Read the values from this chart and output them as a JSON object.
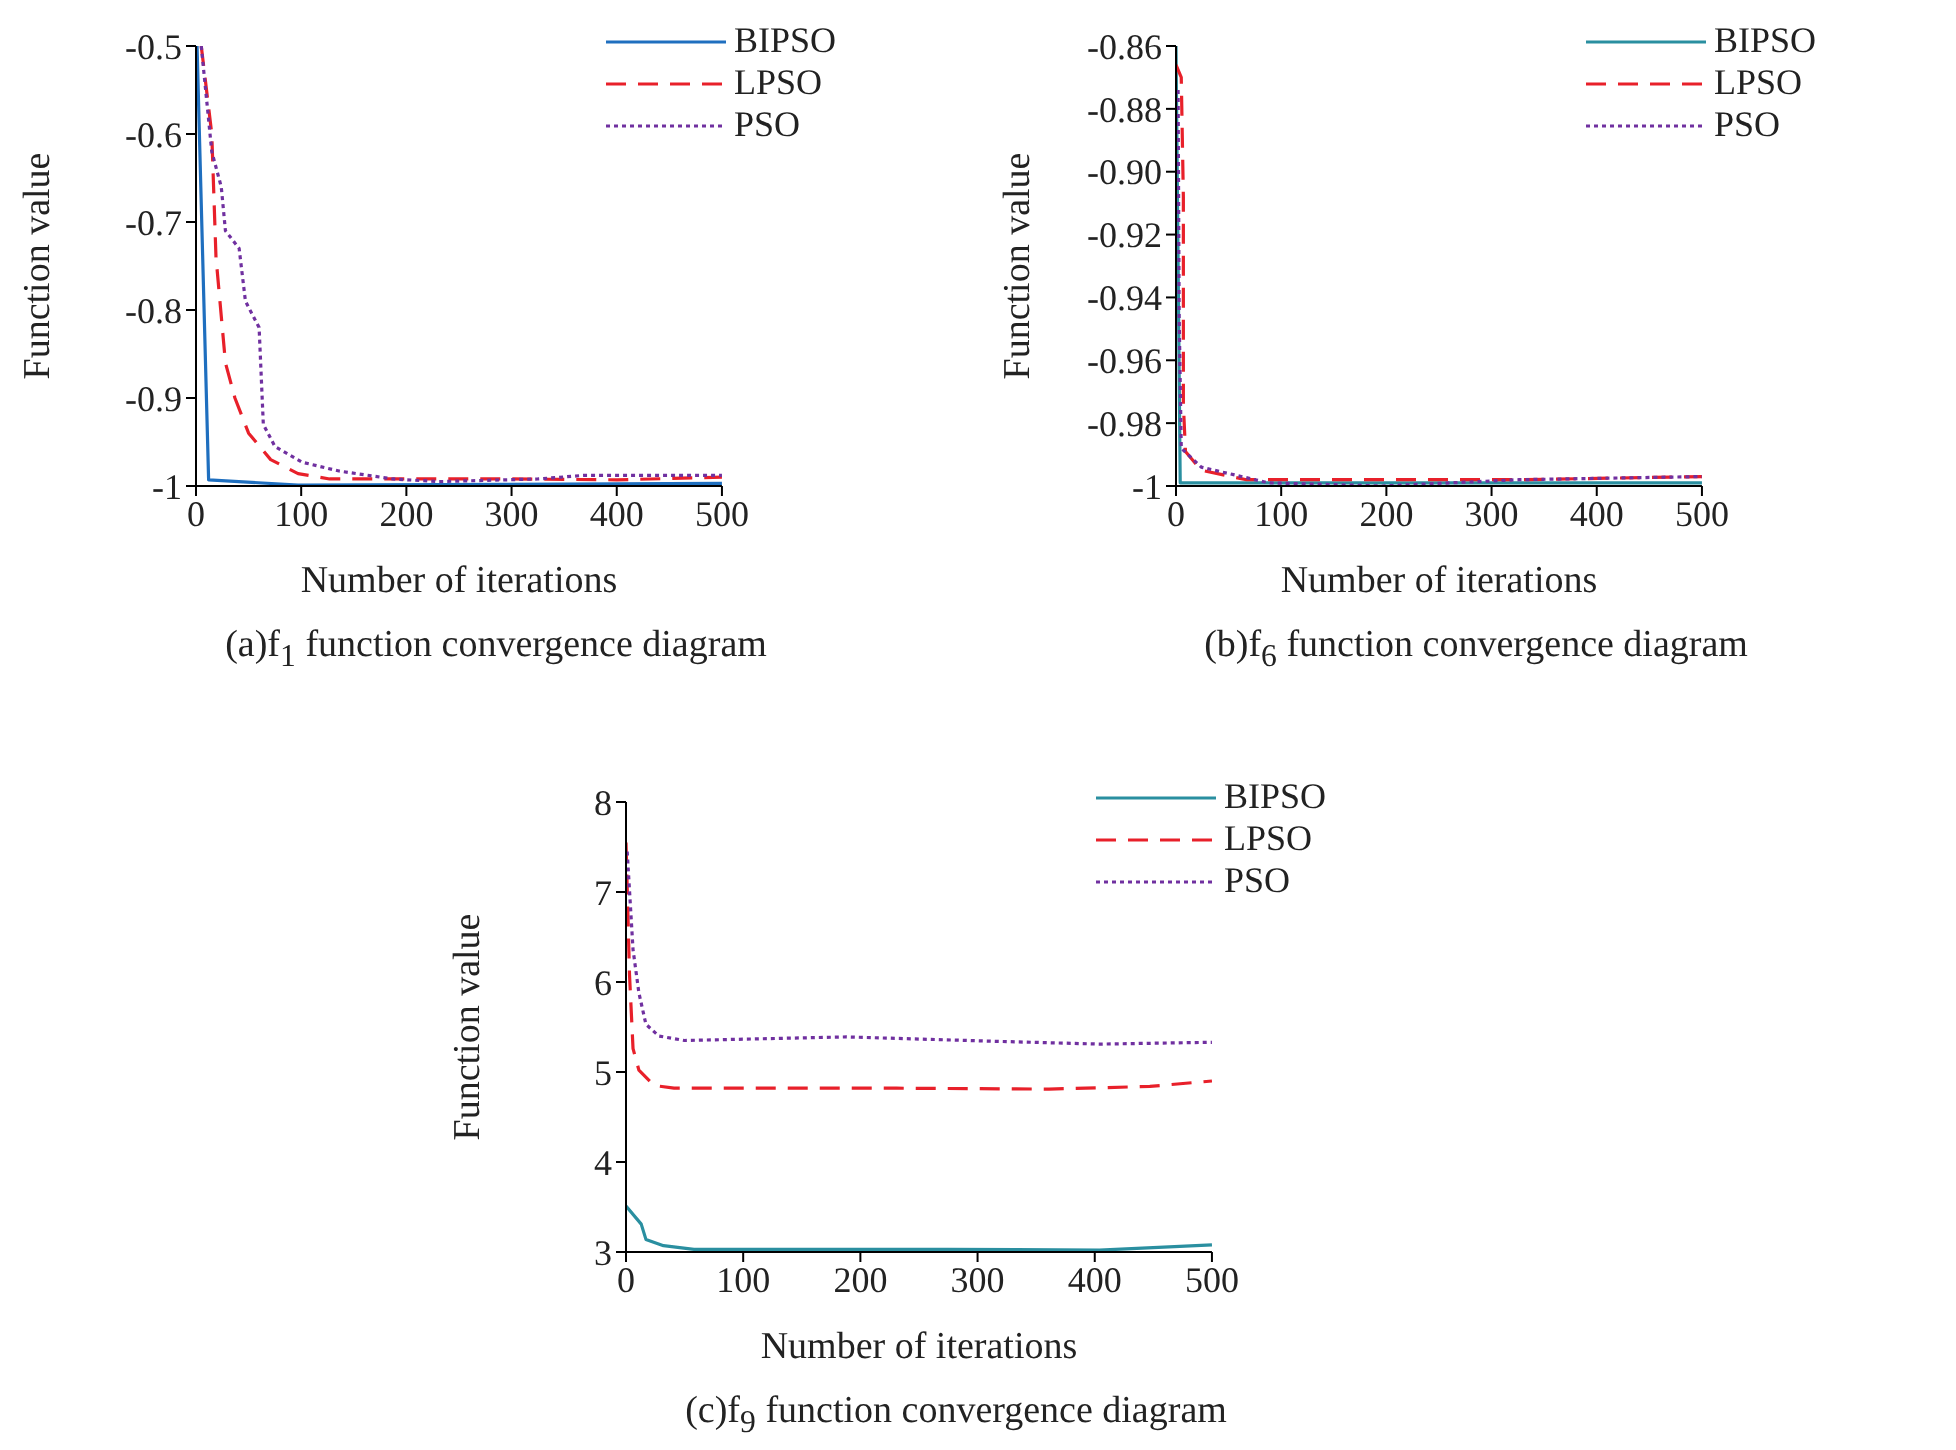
{
  "chart_data": [
    {
      "type": "line",
      "title": "(a)f$_{1}$ function convergence diagram",
      "xlabel": "Number of iterations",
      "ylabel": "Function value",
      "xlim": [
        0,
        500
      ],
      "xticks": [
        0,
        100,
        200,
        300,
        400,
        500
      ],
      "ylim": [
        -1,
        -0.5
      ],
      "yticks": [
        -1,
        -0.9,
        -0.8,
        -0.7,
        -0.6,
        -0.5
      ],
      "grid": false,
      "legend": "top right",
      "marker": "none",
      "series": [
        {
          "name": "BIPSO",
          "color": "#1f6fbf",
          "line_style": "solid",
          "x": [
            0,
            1,
            12,
            97,
            500
          ],
          "values": [
            -0.5,
            -0.5,
            -0.993,
            -0.999,
            -0.997
          ]
        },
        {
          "name": "LPSO",
          "color": "#e8202a",
          "line_style": "dashed",
          "x": [
            5,
            15,
            19,
            28,
            37,
            50,
            71,
            97,
            127,
            196,
            300,
            400,
            500
          ],
          "values": [
            -0.5,
            -0.6,
            -0.74,
            -0.86,
            -0.9,
            -0.94,
            -0.97,
            -0.986,
            -0.992,
            -0.992,
            -0.992,
            -0.993,
            -0.99
          ]
        },
        {
          "name": "PSO",
          "color": "#7030a0",
          "line_style": "dotted",
          "x": [
            5,
            15,
            24,
            28,
            41,
            47,
            60,
            64,
            75,
            101,
            136,
            187,
            231,
            325,
            368,
            500
          ],
          "values": [
            -0.5,
            -0.62,
            -0.66,
            -0.71,
            -0.73,
            -0.79,
            -0.82,
            -0.93,
            -0.955,
            -0.973,
            -0.983,
            -0.992,
            -0.995,
            -0.992,
            -0.988,
            -0.988
          ]
        }
      ]
    },
    {
      "type": "line",
      "title": "(b)f$_{6}$ function convergence diagram",
      "xlabel": "Number of iterations",
      "ylabel": "Function value",
      "xlim": [
        0,
        500
      ],
      "xticks": [
        0,
        100,
        200,
        300,
        400,
        500
      ],
      "ylim": [
        -1,
        -0.86
      ],
      "yticks": [
        -1,
        {
          "value": -0.98,
          "label": "-0.98"
        },
        {
          "value": -0.96,
          "label": "-0.96"
        },
        {
          "value": -0.94,
          "label": "-0.94"
        },
        {
          "value": -0.92,
          "label": "-0.92"
        },
        {
          "value": -0.9,
          "label": "-0.90"
        },
        {
          "value": -0.88,
          "label": "-0.88"
        },
        {
          "value": -0.86,
          "label": "-0.86"
        }
      ],
      "grid": false,
      "legend": "top right",
      "marker": "none",
      "series": [
        {
          "name": "BIPSO",
          "color": "#2a8fa0",
          "line_style": "solid",
          "x": [
            0,
            4,
            500
          ],
          "values": [
            -0.86,
            -0.999,
            -0.999
          ]
        },
        {
          "name": "LPSO",
          "color": "#e8202a",
          "line_style": "dashed",
          "x": [
            0,
            5,
            7,
            7,
            9,
            24,
            67,
            326,
            500
          ],
          "values": [
            -0.866,
            -0.87,
            -0.908,
            -0.974,
            -0.989,
            -0.995,
            -0.998,
            -0.998,
            -0.997
          ]
        },
        {
          "name": "PSO",
          "color": "#7030a0",
          "line_style": "dotted",
          "x": [
            2,
            3,
            5,
            24,
            88,
            196,
            326,
            500
          ],
          "values": [
            -0.874,
            -0.946,
            -0.988,
            -0.994,
            -0.999,
            -1.0,
            -0.998,
            -0.997
          ]
        }
      ]
    },
    {
      "type": "line",
      "title": "(c)f$_{9}$ function convergence diagram",
      "xlabel": "Number of iterations",
      "ylabel": "Function value",
      "xlim": [
        0,
        500
      ],
      "xticks": [
        0,
        100,
        200,
        300,
        400,
        500
      ],
      "ylim": [
        3,
        8
      ],
      "yticks": [
        3,
        4,
        5,
        6,
        7,
        8
      ],
      "grid": false,
      "legend": "top right",
      "marker": "none",
      "series": [
        {
          "name": "BIPSO",
          "color": "#2a8fa0",
          "line_style": "solid",
          "x": [
            0,
            13,
            17,
            32,
            58,
            274,
            404,
            500
          ],
          "values": [
            3.51,
            3.31,
            3.14,
            3.07,
            3.03,
            3.03,
            3.02,
            3.08
          ]
        },
        {
          "name": "LPSO",
          "color": "#e8202a",
          "line_style": "dashed",
          "x": [
            0,
            3,
            6,
            11,
            24,
            41,
            231,
            361,
            447,
            500
          ],
          "values": [
            7.55,
            6.08,
            5.26,
            5.02,
            4.85,
            4.82,
            4.82,
            4.81,
            4.84,
            4.9
          ]
        },
        {
          "name": "PSO",
          "color": "#7030a0",
          "line_style": "dotted",
          "x": [
            1,
            6,
            11,
            17,
            28,
            50,
            188,
            318,
            404,
            500
          ],
          "values": [
            7.45,
            6.36,
            5.88,
            5.53,
            5.4,
            5.35,
            5.39,
            5.34,
            5.31,
            5.33
          ]
        }
      ]
    }
  ]
}
